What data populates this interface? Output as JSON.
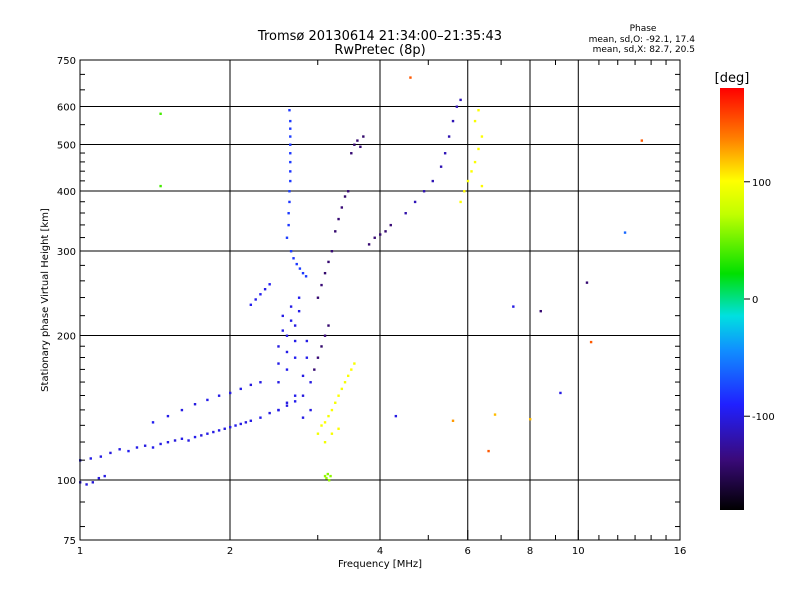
{
  "chart_data": {
    "type": "scatter",
    "title": "Tromsø 20130614 21:34:00–21:35:43",
    "subtitle": "RwPretec (8p)",
    "xlabel": "Frequency [MHz]",
    "ylabel": "Stationary phase Virtual Height [km]",
    "x_scale": "log",
    "y_scale": "log",
    "xlim": [
      1,
      16
    ],
    "ylim": [
      75,
      750
    ],
    "x_ticks": [
      1,
      2,
      4,
      6,
      8,
      10,
      16
    ],
    "y_ticks": [
      75,
      100,
      200,
      300,
      400,
      500,
      600,
      750
    ],
    "grid": true,
    "stats": {
      "heading": "Phase",
      "line_o": "mean, sd,O: -92.1, 17.4",
      "line_x": "mean, sd,X: 82.7, 20.5"
    },
    "colorbar": {
      "label": "[deg]",
      "range": [
        -180,
        180
      ],
      "ticks": [
        100,
        0,
        -100
      ]
    },
    "series": [
      {
        "points": [
          [
            1.0,
            110,
            -95
          ],
          [
            1.05,
            111,
            -98
          ],
          [
            1.1,
            112,
            -100
          ],
          [
            1.15,
            114,
            -102
          ],
          [
            1.2,
            116,
            -100
          ],
          [
            1.25,
            115,
            -96
          ],
          [
            1.3,
            117,
            -98
          ],
          [
            1.35,
            118,
            -101
          ],
          [
            1.4,
            117,
            -97
          ],
          [
            1.45,
            119,
            -99
          ],
          [
            1.5,
            120,
            -100
          ],
          [
            1.55,
            121,
            -102
          ],
          [
            1.6,
            122,
            -98
          ],
          [
            1.65,
            121,
            -100
          ],
          [
            1.7,
            123,
            -97
          ],
          [
            1.75,
            124,
            -103
          ],
          [
            1.8,
            125,
            -99
          ],
          [
            1.85,
            126,
            -100
          ],
          [
            1.9,
            127,
            -98
          ],
          [
            1.95,
            128,
            -101
          ],
          [
            2.0,
            129,
            -100
          ],
          [
            2.05,
            130,
            -97
          ],
          [
            2.1,
            131,
            -99
          ],
          [
            2.15,
            132,
            -102
          ],
          [
            2.2,
            133,
            -100
          ],
          [
            2.3,
            135,
            -98
          ],
          [
            2.4,
            138,
            -101
          ],
          [
            2.5,
            140,
            -99
          ],
          [
            2.6,
            143,
            -100
          ],
          [
            2.7,
            146,
            -96
          ],
          [
            1.4,
            132,
            -95
          ],
          [
            1.5,
            136,
            -98
          ],
          [
            1.6,
            140,
            -100
          ],
          [
            1.7,
            144,
            -101
          ],
          [
            1.8,
            147,
            -97
          ],
          [
            1.9,
            150,
            -99
          ],
          [
            2.0,
            152,
            -100
          ],
          [
            2.1,
            155,
            -98
          ],
          [
            2.2,
            158,
            -102
          ],
          [
            2.3,
            160,
            -100
          ],
          [
            1.0,
            99,
            -105
          ],
          [
            1.03,
            98,
            -103
          ],
          [
            1.06,
            99,
            -104
          ],
          [
            1.09,
            101,
            -102
          ],
          [
            1.12,
            102,
            -100
          ]
        ]
      },
      {
        "points": [
          [
            2.2,
            232,
            -95
          ],
          [
            2.25,
            238,
            -97
          ],
          [
            2.3,
            244,
            -96
          ],
          [
            2.35,
            250,
            -98
          ],
          [
            2.4,
            256,
            -95
          ],
          [
            2.5,
            160,
            -100
          ],
          [
            2.5,
            175,
            -98
          ],
          [
            2.5,
            190,
            -101
          ],
          [
            2.55,
            205,
            -97
          ],
          [
            2.55,
            220,
            -99
          ],
          [
            2.6,
            170,
            -96
          ],
          [
            2.6,
            185,
            -98
          ],
          [
            2.6,
            200,
            -100
          ],
          [
            2.65,
            215,
            -97
          ],
          [
            2.65,
            230,
            -99
          ],
          [
            2.7,
            180,
            -95
          ],
          [
            2.7,
            195,
            -97
          ],
          [
            2.7,
            210,
            -100
          ],
          [
            2.75,
            225,
            -98
          ],
          [
            2.75,
            240,
            -96
          ],
          [
            2.8,
            150,
            -102
          ],
          [
            2.8,
            165,
            -100
          ],
          [
            2.85,
            180,
            -97
          ],
          [
            2.85,
            195,
            -99
          ],
          [
            2.9,
            160,
            -101
          ],
          [
            2.5,
            140,
            -98
          ],
          [
            2.6,
            145,
            -100
          ],
          [
            2.7,
            150,
            -97
          ],
          [
            2.8,
            135,
            -99
          ],
          [
            2.9,
            140,
            -100
          ]
        ]
      },
      {
        "points": [
          [
            2.6,
            320,
            -78
          ],
          [
            2.62,
            340,
            -80
          ],
          [
            2.62,
            360,
            -79
          ],
          [
            2.63,
            380,
            -81
          ],
          [
            2.63,
            400,
            -78
          ],
          [
            2.64,
            420,
            -80
          ],
          [
            2.64,
            440,
            -82
          ],
          [
            2.64,
            460,
            -79
          ],
          [
            2.64,
            480,
            -80
          ],
          [
            2.64,
            500,
            -81
          ],
          [
            2.64,
            520,
            -78
          ],
          [
            2.64,
            540,
            -80
          ],
          [
            2.64,
            560,
            -79
          ],
          [
            2.63,
            590,
            -80
          ],
          [
            2.65,
            300,
            -79
          ],
          [
            2.68,
            290,
            -81
          ],
          [
            2.72,
            282,
            -80
          ],
          [
            2.76,
            276,
            -78
          ],
          [
            2.8,
            270,
            -80
          ],
          [
            2.84,
            266,
            -79
          ]
        ]
      },
      {
        "points": [
          [
            2.95,
            170,
            -140
          ],
          [
            3.0,
            180,
            -138
          ],
          [
            3.05,
            190,
            -142
          ],
          [
            3.1,
            200,
            -139
          ],
          [
            3.15,
            210,
            -141
          ],
          [
            3.0,
            240,
            -140
          ],
          [
            3.05,
            255,
            -138
          ],
          [
            3.1,
            270,
            -142
          ],
          [
            3.15,
            285,
            -140
          ],
          [
            3.2,
            300,
            -139
          ],
          [
            3.25,
            330,
            -141
          ],
          [
            3.3,
            350,
            -140
          ],
          [
            3.35,
            370,
            -138
          ],
          [
            3.4,
            390,
            -142
          ],
          [
            3.45,
            400,
            -140
          ],
          [
            3.5,
            480,
            -139
          ],
          [
            3.55,
            500,
            -141
          ],
          [
            3.6,
            510,
            -140
          ],
          [
            3.65,
            495,
            -138
          ],
          [
            3.7,
            520,
            -142
          ],
          [
            3.8,
            310,
            -140
          ],
          [
            3.9,
            320,
            -139
          ],
          [
            4.0,
            325,
            -141
          ],
          [
            4.1,
            330,
            -140
          ],
          [
            4.2,
            340,
            -138
          ],
          [
            4.5,
            360,
            -120
          ],
          [
            4.7,
            380,
            -115
          ],
          [
            4.9,
            400,
            -118
          ],
          [
            5.1,
            420,
            -116
          ],
          [
            5.3,
            450,
            -117
          ],
          [
            5.4,
            480,
            -115
          ],
          [
            5.5,
            520,
            -118
          ],
          [
            5.6,
            560,
            -116
          ],
          [
            5.7,
            600,
            -117
          ],
          [
            5.8,
            620,
            -115
          ]
        ]
      },
      {
        "points": [
          [
            3.0,
            125,
            95
          ],
          [
            3.05,
            130,
            98
          ],
          [
            3.1,
            132,
            100
          ],
          [
            3.15,
            136,
            96
          ],
          [
            3.2,
            140,
            99
          ],
          [
            3.25,
            145,
            97
          ],
          [
            3.3,
            150,
            100
          ],
          [
            3.35,
            155,
            98
          ],
          [
            3.4,
            160,
            96
          ],
          [
            3.45,
            165,
            99
          ],
          [
            3.5,
            170,
            100
          ],
          [
            3.55,
            175,
            97
          ],
          [
            3.1,
            120,
            95
          ],
          [
            3.2,
            125,
            98
          ],
          [
            3.3,
            128,
            100
          ],
          [
            3.1,
            102,
            60
          ],
          [
            3.12,
            101,
            62
          ],
          [
            3.14,
            103,
            58
          ],
          [
            3.16,
            100,
            61
          ],
          [
            3.18,
            102,
            59
          ],
          [
            5.8,
            380,
            100
          ],
          [
            5.9,
            400,
            102
          ],
          [
            6.0,
            420,
            98
          ],
          [
            6.1,
            440,
            100
          ],
          [
            6.2,
            460,
            99
          ],
          [
            6.3,
            490,
            101
          ],
          [
            6.4,
            520,
            100
          ],
          [
            6.2,
            560,
            98
          ],
          [
            6.3,
            590,
            100
          ],
          [
            6.4,
            410,
            102
          ]
        ]
      },
      {
        "points": [
          [
            1.45,
            580,
            40
          ],
          [
            1.45,
            410,
            40
          ],
          [
            4.6,
            690,
            150
          ],
          [
            7.4,
            230,
            -100
          ],
          [
            8.4,
            225,
            -140
          ],
          [
            9.2,
            152,
            -100
          ],
          [
            10.4,
            258,
            -140
          ],
          [
            10.6,
            194,
            150
          ],
          [
            12.4,
            328,
            -60
          ],
          [
            13.4,
            510,
            150
          ],
          [
            6.6,
            115,
            150
          ],
          [
            6.8,
            137,
            120
          ],
          [
            8.0,
            134,
            120
          ],
          [
            5.6,
            133,
            130
          ],
          [
            4.3,
            136,
            -100
          ]
        ]
      }
    ]
  }
}
